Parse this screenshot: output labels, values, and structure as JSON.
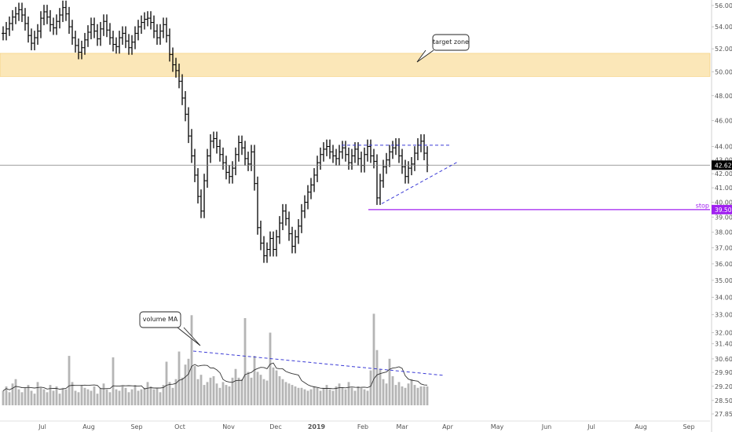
{
  "chart_data": {
    "type": "ohlc",
    "price_axis": {
      "scale": "log",
      "range": [
        27.5,
        56.5
      ],
      "ticks": [
        "56.00",
        "54.00",
        "52.00",
        "50.00",
        "48.00",
        "46.00",
        "44.00",
        "43.00",
        "42.00",
        "41.00",
        "40.00",
        "39.00",
        "38.00",
        "37.00",
        "36.00",
        "35.00",
        "34.00",
        "33.00",
        "32.00",
        "31.40",
        "30.60",
        "29.90",
        "29.20",
        "28.50",
        "27.85"
      ]
    },
    "time_axis": {
      "ticks": [
        "Jul",
        "Aug",
        "Sep",
        "Oct",
        "Nov",
        "Dec",
        "2019",
        "Feb",
        "Mar",
        "Apr",
        "May",
        "Jun",
        "Jul",
        "Aug",
        "Sep"
      ]
    },
    "current_price": {
      "label": "42.62",
      "value": 42.62,
      "color": "#000000"
    },
    "stop": {
      "label": "stop",
      "price_label": "39.50",
      "value": 39.5,
      "color": "#a020f0"
    },
    "target_zone": {
      "label": "target zone",
      "low": 49.6,
      "high": 51.6,
      "color": "#fbe7b8"
    },
    "volume_label": "volume MA",
    "series": [
      {
        "name": "",
        "closes": [
          53.4,
          53.8,
          54.3,
          54.9,
          55.2,
          55.6,
          55.1,
          54.3,
          53.2,
          52.5,
          53.0,
          53.6,
          54.8,
          55.4,
          54.9,
          54.2,
          53.9,
          54.5,
          55.1,
          55.8,
          55.2,
          54.0,
          53.0,
          52.3,
          51.7,
          52.1,
          52.8,
          53.5,
          54.2,
          53.6,
          52.9,
          53.8,
          54.5,
          53.7,
          53.0,
          52.4,
          52.2,
          53.0,
          53.4,
          52.7,
          52.1,
          52.6,
          53.4,
          54.0,
          54.4,
          54.7,
          54.8,
          54.4,
          53.6,
          53.0,
          53.6,
          54.2,
          53.2,
          51.5,
          50.6,
          50.1,
          49.2,
          47.8,
          46.5,
          44.8,
          43.3,
          41.9,
          40.4,
          39.4,
          41.5,
          43.3,
          44.4,
          44.6,
          44.0,
          43.4,
          42.8,
          42.1,
          41.8,
          42.4,
          43.4,
          44.3,
          43.9,
          43.1,
          42.7,
          43.6,
          41.3,
          38.3,
          37.3,
          36.5,
          36.9,
          37.6,
          36.9,
          37.7,
          38.6,
          39.4,
          38.9,
          37.9,
          37.1,
          37.7,
          38.4,
          39.4,
          40.0,
          40.7,
          41.2,
          41.9,
          42.8,
          43.4,
          43.8,
          44.0,
          43.6,
          43.3,
          43.1,
          43.6,
          43.9,
          43.4,
          42.8,
          43.3,
          43.8,
          43.1,
          42.6,
          43.4,
          44.0,
          43.3,
          42.9,
          40.3,
          41.5,
          42.5,
          43.0,
          43.6,
          43.9,
          44.1,
          43.3,
          42.5,
          41.8,
          42.4,
          42.7,
          43.5,
          44.1,
          44.4,
          43.5,
          42.62
        ],
        "volumes": [
          1.0,
          1.3,
          0.9,
          1.5,
          1.8,
          1.1,
          0.9,
          1.2,
          1.4,
          1.0,
          0.8,
          1.6,
          1.2,
          1.1,
          0.9,
          1.4,
          1.0,
          1.3,
          0.8,
          1.2,
          1.1,
          3.4,
          1.6,
          1.0,
          0.9,
          1.4,
          1.2,
          1.1,
          1.0,
          1.3,
          0.8,
          1.2,
          1.5,
          1.1,
          0.9,
          3.3,
          1.1,
          1.0,
          1.3,
          1.2,
          0.9,
          1.1,
          1.4,
          1.0,
          1.1,
          1.2,
          1.6,
          1.3,
          1.1,
          1.2,
          0.9,
          1.4,
          3.0,
          1.6,
          1.2,
          1.8,
          3.7,
          1.9,
          2.8,
          3.2,
          6.2,
          2.7,
          1.8,
          2.1,
          1.4,
          1.6,
          1.9,
          2.0,
          1.5,
          1.2,
          1.6,
          1.4,
          1.3,
          1.9,
          2.5,
          1.9,
          1.8,
          6.0,
          2.3,
          1.9,
          3.4,
          2.3,
          2.1,
          1.8,
          1.7,
          5.0,
          2.6,
          2.4,
          2.0,
          1.8,
          1.6,
          1.5,
          1.4,
          1.3,
          1.2,
          1.2,
          1.1,
          1.0,
          1.1,
          1.3,
          1.2,
          1.0,
          1.2,
          1.4,
          1.1,
          1.0,
          1.3,
          1.5,
          1.2,
          1.1,
          1.6,
          1.2,
          1.0,
          1.3,
          1.2,
          1.1,
          1.0,
          2.4,
          6.3,
          3.8,
          2.5,
          1.8,
          1.5,
          3.2,
          2.0,
          1.4,
          1.6,
          1.3,
          1.2,
          1.5,
          1.8,
          1.4,
          1.2,
          1.3,
          1.3,
          1.3
        ]
      }
    ]
  }
}
